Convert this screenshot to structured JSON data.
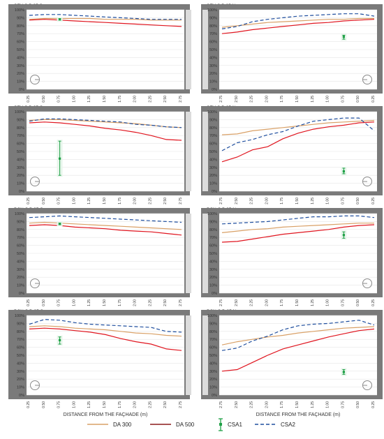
{
  "figure": {
    "x_axis_title": "DISTANCE FROM THE FAÇHADE (m)",
    "legend": [
      {
        "key": "da300",
        "label": "DA 300",
        "color": "#d9a066"
      },
      {
        "key": "da500",
        "label": "DA 500",
        "color": "#8b1a1a"
      },
      {
        "key": "csa1",
        "label": "CSA1",
        "color": "#1fa046"
      },
      {
        "key": "csa2",
        "label": "CSA2",
        "color": "#1f4e9e"
      }
    ],
    "colors": {
      "frame": "#7a7a7a",
      "da500_line": "#e0141e",
      "wall": "#7a7a7a"
    }
  },
  "chart_data": [
    {
      "type": "line",
      "title": "SEV C B 25 S",
      "x": [
        "0.25",
        "0.50",
        "0.75",
        "1.00",
        "1.25",
        "1.50",
        "1.75",
        "2.00",
        "2.25",
        "2.50",
        "2.75"
      ],
      "ylim": [
        0,
        100
      ],
      "y_ticks": [
        "0%",
        "10%",
        "20%",
        "30%",
        "40%",
        "50%",
        "60%",
        "70%",
        "80%",
        "90%",
        "100%"
      ],
      "orientation": "S",
      "series": [
        {
          "name": "DA 300",
          "values": [
            88,
            89,
            89,
            89,
            89,
            88,
            88,
            88,
            87,
            87,
            87
          ]
        },
        {
          "name": "DA 500",
          "values": [
            87,
            88,
            87,
            86,
            85,
            84,
            83,
            82,
            81,
            80,
            79
          ]
        },
        {
          "name": "CSA2",
          "values": [
            93,
            94,
            94,
            93,
            92,
            91,
            90,
            89,
            88,
            88,
            88
          ]
        }
      ],
      "csa1": {
        "x": "0.75",
        "value": 88,
        "low": 87,
        "high": 89
      }
    },
    {
      "type": "line",
      "title": "SEV C B 25 N",
      "x": [
        "2.75",
        "2.50",
        "2.25",
        "2.00",
        "1.75",
        "1.50",
        "1.25",
        "1.00",
        "0.75",
        "0.50",
        "0.25"
      ],
      "ylim": [
        0,
        100
      ],
      "y_ticks": [
        "0%",
        "10%",
        "20%",
        "30%",
        "40%",
        "50%",
        "60%",
        "70%",
        "80%",
        "90%",
        "100%"
      ],
      "orientation": "N",
      "series": [
        {
          "name": "DA 300",
          "values": [
            78,
            80,
            82,
            84,
            85,
            86,
            87,
            88,
            88,
            89,
            89
          ]
        },
        {
          "name": "DA 500",
          "values": [
            70,
            72,
            75,
            77,
            79,
            81,
            83,
            84,
            86,
            87,
            88
          ]
        },
        {
          "name": "CSA2",
          "values": [
            76,
            79,
            85,
            88,
            90,
            92,
            93,
            94,
            95,
            95,
            92
          ]
        }
      ],
      "csa1": {
        "x": "0.75",
        "value": 66,
        "low": 63,
        "high": 68
      }
    },
    {
      "type": "line",
      "title": "SEV C D 25 S",
      "x": [
        "0.25",
        "0.50",
        "0.75",
        "1.00",
        "1.25",
        "1.50",
        "1.75",
        "2.00",
        "2.25",
        "2.50",
        "2.75"
      ],
      "ylim": [
        0,
        100
      ],
      "y_ticks": [
        "0%",
        "10%",
        "20%",
        "30%",
        "40%",
        "50%",
        "60%",
        "70%",
        "80%",
        "90%",
        "100%"
      ],
      "orientation": "S",
      "series": [
        {
          "name": "DA 300",
          "values": [
            89,
            90,
            90,
            89,
            88,
            87,
            86,
            85,
            83,
            81,
            80
          ]
        },
        {
          "name": "DA 500",
          "values": [
            86,
            87,
            86,
            84,
            82,
            79,
            77,
            74,
            70,
            65,
            64
          ]
        },
        {
          "name": "CSA2",
          "values": [
            88,
            91,
            91,
            90,
            89,
            88,
            87,
            84,
            83,
            81,
            80
          ]
        }
      ],
      "csa1": {
        "x": "0.75",
        "value": 41,
        "low": 20,
        "high": 63
      }
    },
    {
      "type": "line",
      "title": "SEV C D 25 N",
      "x": [
        "2.75",
        "2.50",
        "2.25",
        "2.00",
        "1.75",
        "1.50",
        "1.25",
        "1.00",
        "0.75",
        "0.50",
        "0.25"
      ],
      "ylim": [
        0,
        100
      ],
      "y_ticks": [
        "0%",
        "10%",
        "20%",
        "30%",
        "40%",
        "50%",
        "60%",
        "70%",
        "80%",
        "90%",
        "100%"
      ],
      "orientation": "N",
      "series": [
        {
          "name": "DA 300",
          "values": [
            71,
            72,
            76,
            78,
            80,
            82,
            84,
            86,
            87,
            88,
            89
          ]
        },
        {
          "name": "DA 500",
          "values": [
            37,
            43,
            52,
            56,
            66,
            73,
            78,
            81,
            83,
            86,
            87
          ]
        },
        {
          "name": "CSA2",
          "values": [
            51,
            61,
            65,
            71,
            75,
            82,
            88,
            90,
            92,
            92,
            76
          ]
        }
      ],
      "csa1": {
        "x": "0.75",
        "value": 25,
        "low": 22,
        "high": 29
      }
    },
    {
      "type": "line",
      "title": "BCN C B 25 S",
      "x": [
        "0.25",
        "0.50",
        "0.75",
        "1.00",
        "1.25",
        "1.50",
        "1.75",
        "2.00",
        "2.25",
        "2.50",
        "2.75"
      ],
      "ylim": [
        0,
        100
      ],
      "y_ticks": [
        "0%",
        "10%",
        "20%",
        "30%",
        "40%",
        "50%",
        "60%",
        "70%",
        "80%",
        "90%",
        "100%"
      ],
      "orientation": "S",
      "series": [
        {
          "name": "DA 300",
          "values": [
            88,
            89,
            88,
            87,
            86,
            85,
            84,
            83,
            82,
            81,
            80
          ]
        },
        {
          "name": "DA 500",
          "values": [
            85,
            86,
            85,
            83,
            82,
            81,
            79,
            78,
            77,
            75,
            73
          ]
        },
        {
          "name": "CSA2",
          "values": [
            95,
            96,
            97,
            96,
            95,
            94,
            93,
            92,
            91,
            90,
            89
          ]
        }
      ],
      "csa1": {
        "x": "0.75",
        "value": 87,
        "low": 86,
        "high": 88
      }
    },
    {
      "type": "line",
      "title": "BCN C B 25 N",
      "x": [
        "2.75",
        "2.50",
        "2.25",
        "2.00",
        "1.75",
        "1.50",
        "1.25",
        "1.00",
        "0.75",
        "0.50",
        "0.25"
      ],
      "ylim": [
        0,
        100
      ],
      "y_ticks": [
        "0%",
        "10%",
        "20%",
        "30%",
        "40%",
        "50%",
        "60%",
        "70%",
        "80%",
        "90%",
        "100%"
      ],
      "orientation": "N",
      "series": [
        {
          "name": "DA 300",
          "values": [
            76,
            78,
            80,
            81,
            83,
            84,
            85,
            86,
            87,
            88,
            88
          ]
        },
        {
          "name": "DA 500",
          "values": [
            64,
            65,
            68,
            71,
            74,
            76,
            78,
            80,
            83,
            85,
            86
          ]
        },
        {
          "name": "CSA2",
          "values": [
            87,
            88,
            89,
            90,
            92,
            94,
            96,
            96,
            97,
            97,
            95
          ]
        }
      ],
      "csa1": {
        "x": "0.75",
        "value": 73,
        "low": 69,
        "high": 77
      }
    },
    {
      "type": "line",
      "title": "BCN C D 25 S",
      "x": [
        "0.25",
        "0.50",
        "0.75",
        "1.00",
        "1.25",
        "1.50",
        "1.75",
        "2.00",
        "2.25",
        "2.50",
        "2.75"
      ],
      "ylim": [
        0,
        100
      ],
      "y_ticks": [
        "0%",
        "10%",
        "20%",
        "30%",
        "40%",
        "50%",
        "60%",
        "70%",
        "80%",
        "90%",
        "100%"
      ],
      "orientation": "S",
      "series": [
        {
          "name": "DA 300",
          "values": [
            86,
            87,
            86,
            84,
            83,
            82,
            80,
            78,
            77,
            75,
            74
          ]
        },
        {
          "name": "DA 500",
          "values": [
            83,
            84,
            83,
            81,
            79,
            76,
            71,
            67,
            64,
            58,
            56
          ]
        },
        {
          "name": "CSA2",
          "values": [
            89,
            95,
            94,
            91,
            89,
            88,
            87,
            86,
            85,
            80,
            79
          ]
        }
      ],
      "csa1": {
        "x": "0.75",
        "value": 69,
        "low": 64,
        "high": 73
      }
    },
    {
      "type": "line",
      "title": "BCN C D 25 N",
      "x": [
        "2.75",
        "2.50",
        "2.25",
        "2.00",
        "1.75",
        "1.50",
        "1.25",
        "1.00",
        "0.75",
        "0.50",
        "0.25"
      ],
      "ylim": [
        0,
        100
      ],
      "y_ticks": [
        "0%",
        "10%",
        "20%",
        "30%",
        "40%",
        "50%",
        "60%",
        "70%",
        "80%",
        "90%",
        "100%"
      ],
      "orientation": "N",
      "series": [
        {
          "name": "DA 300",
          "values": [
            63,
            67,
            70,
            73,
            75,
            78,
            80,
            82,
            84,
            85,
            86
          ]
        },
        {
          "name": "DA 500",
          "values": [
            30,
            32,
            41,
            50,
            58,
            63,
            68,
            73,
            77,
            81,
            83
          ]
        },
        {
          "name": "CSA2",
          "values": [
            56,
            59,
            68,
            74,
            82,
            87,
            89,
            90,
            92,
            94,
            88
          ]
        }
      ],
      "csa1": {
        "x": "0.75",
        "value": 29,
        "low": 26,
        "high": 32
      }
    }
  ]
}
